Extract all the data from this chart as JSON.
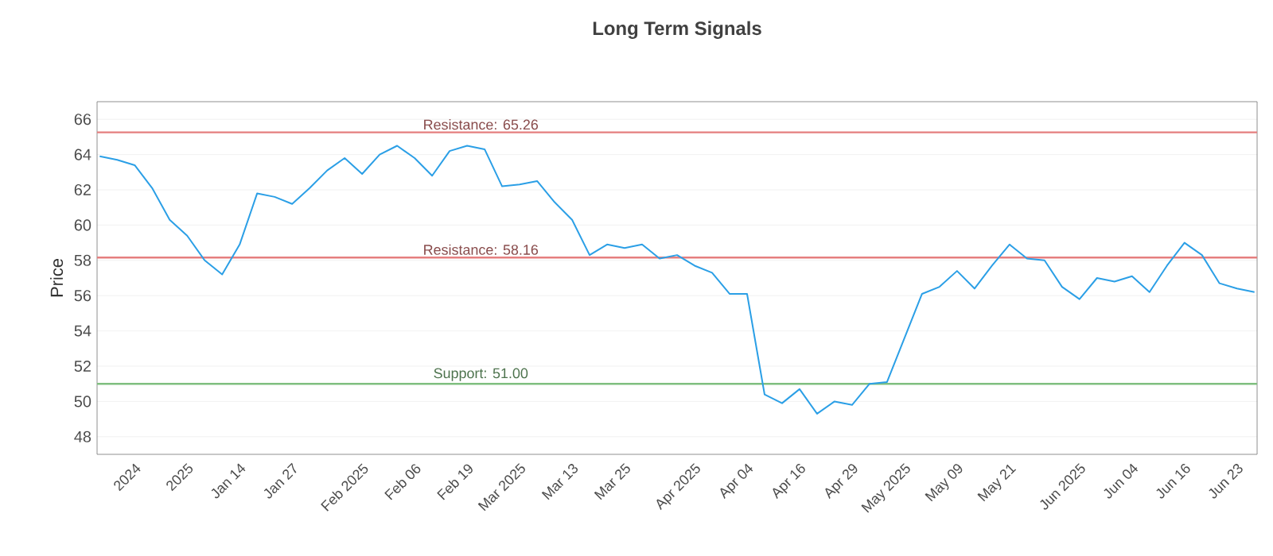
{
  "chart_data": {
    "type": "line",
    "title": "Long Term Signals",
    "ylabel": "Price",
    "categories": [
      null,
      null,
      "2024",
      null,
      null,
      "2025",
      null,
      null,
      "Jan 14",
      null,
      null,
      "Jan 27",
      null,
      null,
      null,
      "Feb 2025",
      null,
      null,
      "Feb 06",
      null,
      null,
      "Feb 19",
      null,
      null,
      "Mar 2025",
      null,
      null,
      "Mar 13",
      null,
      null,
      "Mar 25",
      null,
      null,
      null,
      "Apr 2025",
      null,
      null,
      "Apr 04",
      null,
      null,
      "Apr 16",
      null,
      null,
      "Apr 29",
      null,
      null,
      "May 2025",
      null,
      null,
      "May 09",
      null,
      null,
      "May 21",
      null,
      null,
      null,
      "Jun 2025",
      null,
      null,
      "Jun 04",
      null,
      null,
      "Jun 16",
      null,
      null,
      "Jun 23",
      null
    ],
    "series": [
      {
        "color": "#2b9fe6",
        "values": [
          63.9,
          63.7,
          63.4,
          62.1,
          60.3,
          59.4,
          58.0,
          57.2,
          58.9,
          61.8,
          61.6,
          61.2,
          62.1,
          63.1,
          63.8,
          62.9,
          64.0,
          64.5,
          63.8,
          62.8,
          64.2,
          64.5,
          64.3,
          62.2,
          62.3,
          62.5,
          61.3,
          60.3,
          58.3,
          58.9,
          58.7,
          58.9,
          58.1,
          58.3,
          57.7,
          57.3,
          56.1,
          56.1,
          50.4,
          49.9,
          50.7,
          49.3,
          50.0,
          49.8,
          51.0,
          51.1,
          53.6,
          56.1,
          56.5,
          57.4,
          56.4,
          57.7,
          58.9,
          58.1,
          58.0,
          56.5,
          55.8,
          57.0,
          56.8,
          57.1,
          56.2,
          57.7,
          59.0,
          58.3,
          56.7,
          56.4,
          56.2
        ]
      }
    ],
    "ylim": [
      47,
      67
    ],
    "yticks": [
      48,
      50,
      52,
      54,
      56,
      58,
      60,
      62,
      64,
      66
    ],
    "grid": "y",
    "marker": "none",
    "line_style": "solid",
    "ref_lines": [
      {
        "axis": "y",
        "value": 65.26,
        "label": "Resistance: 65.26",
        "color": "#e57f7f"
      },
      {
        "axis": "y",
        "value": 58.16,
        "label": "Resistance: 58.16",
        "color": "#e57f7f"
      },
      {
        "axis": "y",
        "value": 51.0,
        "label": "Support: 51.00",
        "color": "#7fbf7f"
      }
    ]
  }
}
